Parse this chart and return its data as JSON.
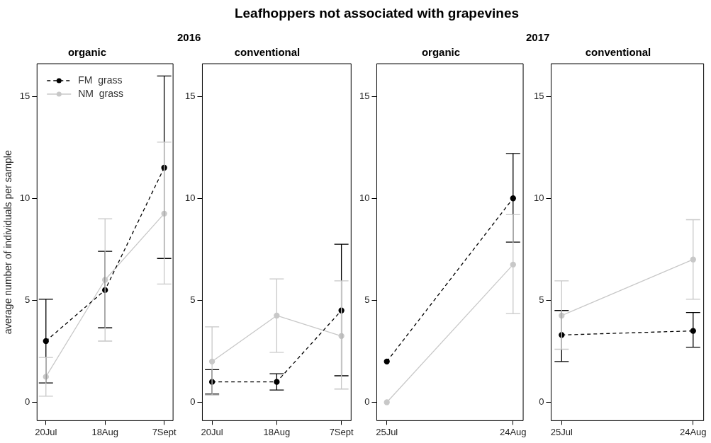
{
  "chart_data": [
    {
      "type": "line",
      "title": "organic",
      "annotations": [
        "Leafhoppers not associated with grapevines"
      ],
      "ylabel": "average number of individuals per sample",
      "categories": [
        "20Jul",
        "18Aug",
        "7Sept"
      ],
      "ylim": [
        -0.9,
        16.6
      ],
      "yticks": [
        0,
        5,
        10,
        15
      ],
      "legend": "top left",
      "marker": "circle",
      "series": [
        {
          "name": "FM  grass",
          "color": "#000000",
          "line_style": "dashed",
          "values": [
            3.0,
            5.5,
            11.5
          ],
          "errors": [
            [
              0.95,
              5.05
            ],
            [
              3.65,
              7.4
            ],
            [
              7.05,
              16.0
            ]
          ]
        },
        {
          "name": "NM  grass",
          "color": "#c8c8c8",
          "line_style": "solid",
          "values": [
            1.25,
            6.0,
            9.25
          ],
          "errors": [
            [
              0.3,
              2.2
            ],
            [
              3.0,
              9.0
            ],
            [
              5.8,
              12.75
            ]
          ]
        }
      ]
    },
    {
      "type": "line",
      "title": "conventional",
      "subtitle": "2016",
      "categories": [
        "20Jul",
        "18Aug",
        "7Sept"
      ],
      "ylim": [
        -0.9,
        16.6
      ],
      "yticks": [
        0,
        5,
        10,
        15
      ],
      "marker": "circle",
      "series": [
        {
          "color": "#000000",
          "line_style": "dashed",
          "values": [
            1.0,
            1.0,
            4.5
          ],
          "errors": [
            [
              0.4,
              1.6
            ],
            [
              0.6,
              1.4
            ],
            [
              1.3,
              7.75
            ]
          ]
        },
        {
          "color": "#c8c8c8",
          "line_style": "solid",
          "values": [
            2.0,
            4.25,
            3.25
          ],
          "errors": [
            [
              0.35,
              3.7
            ],
            [
              2.45,
              6.05
            ],
            [
              0.65,
              5.95
            ]
          ]
        }
      ]
    },
    {
      "type": "line",
      "title": "organic",
      "categories": [
        "25Jul",
        "24Aug"
      ],
      "ylim": [
        -0.9,
        16.6
      ],
      "yticks": [
        0,
        5,
        10,
        15
      ],
      "marker": "circle",
      "series": [
        {
          "color": "#000000",
          "line_style": "dashed",
          "values": [
            2.0,
            10.0
          ],
          "errors": [
            null,
            [
              7.85,
              12.2
            ]
          ]
        },
        {
          "color": "#c8c8c8",
          "line_style": "solid",
          "values": [
            0,
            6.75
          ],
          "errors": [
            null,
            [
              4.35,
              9.2
            ]
          ]
        }
      ]
    },
    {
      "type": "line",
      "title": "conventional",
      "subtitle": "2017",
      "categories": [
        "25Jul",
        "24Aug"
      ],
      "ylim": [
        -0.9,
        16.6
      ],
      "yticks": [
        0,
        5,
        10,
        15
      ],
      "marker": "circle",
      "series": [
        {
          "color": "#000000",
          "line_style": "dashed",
          "values": [
            3.3,
            3.5
          ],
          "errors": [
            [
              2.0,
              4.5
            ],
            [
              2.7,
              4.4
            ]
          ]
        },
        {
          "color": "#c8c8c8",
          "line_style": "solid",
          "values": [
            4.25,
            7.0
          ],
          "errors": [
            [
              2.6,
              5.95
            ],
            [
              5.05,
              8.95
            ]
          ]
        }
      ]
    }
  ]
}
